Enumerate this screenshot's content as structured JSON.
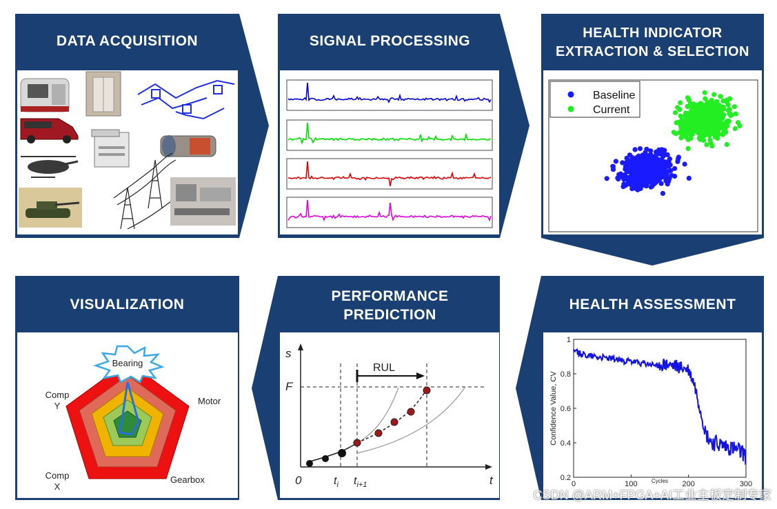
{
  "panels": {
    "data_acquisition": {
      "title": "DATA ACQUISITION"
    },
    "signal_processing": {
      "title": "SIGNAL PROCESSING"
    },
    "health_indicator": {
      "title_line1": "HEALTH INDICATOR",
      "title_line2": "EXTRACTION & SELECTION"
    },
    "health_assessment": {
      "title": "HEALTH ASSESSMENT"
    },
    "performance_prediction": {
      "title_line1": "PERFORMANCE",
      "title_line2": "PREDICTION"
    },
    "visualization": {
      "title": "VISUALIZATION"
    }
  },
  "colors": {
    "panel_blue": "#1a3f73",
    "signal_colors": [
      "#0000dd",
      "#00e000",
      "#e00000",
      "#e000e0"
    ]
  },
  "scatter": {
    "legend": [
      {
        "label": "Baseline",
        "color": "#1a1aff"
      },
      {
        "label": "Current",
        "color": "#22ee22"
      }
    ]
  },
  "chart_data": [
    {
      "type": "line",
      "ylabel": "Confidence Value, CV",
      "xlabel": "Cycles",
      "xlim": [
        0,
        300
      ],
      "ylim": [
        0.2,
        1.0
      ],
      "x_ticks": [
        "0",
        "100",
        "200",
        "300"
      ],
      "y_ticks": [
        "0.2",
        "0.4",
        "0.6",
        "0.8",
        "1"
      ],
      "series": [
        {
          "x": [
            0,
            20,
            40,
            60,
            80,
            100,
            120,
            140,
            160,
            180,
            200,
            210,
            220,
            230,
            240,
            260,
            280,
            300
          ],
          "y": [
            0.93,
            0.91,
            0.9,
            0.89,
            0.88,
            0.87,
            0.86,
            0.85,
            0.85,
            0.84,
            0.82,
            0.74,
            0.6,
            0.45,
            0.4,
            0.38,
            0.36,
            0.33
          ]
        }
      ]
    }
  ],
  "prediction": {
    "y_axis_label": "s",
    "x_axis_label": "t",
    "threshold_label": "F",
    "origin_label": "0",
    "ti_label": "t",
    "ti_sub": "i",
    "ti1_label": "t",
    "ti1_sub": "i+1",
    "rul_label": "RUL"
  },
  "radar": {
    "labels": {
      "top": "Bearing",
      "right": "Motor",
      "bottom_right": "Gearbox",
      "bottom_left_line1": "Comp",
      "bottom_left_line2": "X",
      "left_line1": "Comp",
      "left_line2": "Y"
    },
    "ring_colors": [
      "#ee1111",
      "#e06a5a",
      "#f0b400",
      "#9bc95a",
      "#2e8b3a"
    ]
  },
  "watermark": "CSDN @ARM+FPGA+AI工业主板定制专家"
}
